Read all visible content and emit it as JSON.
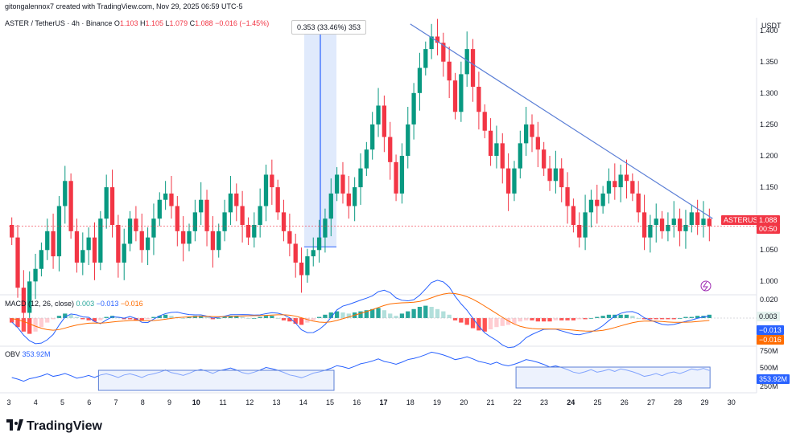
{
  "creator": "gitongalennox7 created with TradingView.com, Nov 29, 2025 06:59 UTC-5",
  "legend": {
    "symbol": "ASTER / TetherUS · 4h · Binance",
    "o_label": "O",
    "o": "1.103",
    "h_label": "H",
    "h": "1.105",
    "l_label": "L",
    "l": "1.079",
    "c_label": "C",
    "c": "1.088",
    "change": "−0.016 (−1.45%)"
  },
  "currency": "USDT",
  "measure_label": "0.353 (33.46%) 353",
  "price_ticks": [
    "1.400",
    "1.350",
    "1.300",
    "1.250",
    "1.200",
    "1.150",
    "1.100",
    "1.050",
    "1.000"
  ],
  "price_badge": {
    "symbol": "ASTERUSDT",
    "price": "1.088",
    "timer": "00:50"
  },
  "macd": {
    "label": "MACD (12, 26, close)",
    "v1": "0.003",
    "v2": "−0.013",
    "v3": "−0.016",
    "tick": "0.020",
    "badges": [
      "0.003",
      "−0.013",
      "−0.016"
    ]
  },
  "obv": {
    "label": "OBV",
    "value": "353.92M",
    "ticks": [
      "750M",
      "500M",
      "250M"
    ],
    "badge": "353.92M"
  },
  "x_ticks": [
    {
      "label": "3",
      "bold": false
    },
    {
      "label": "4",
      "bold": false
    },
    {
      "label": "5",
      "bold": false
    },
    {
      "label": "6",
      "bold": false
    },
    {
      "label": "7",
      "bold": false
    },
    {
      "label": "8",
      "bold": false
    },
    {
      "label": "9",
      "bold": false
    },
    {
      "label": "10",
      "bold": true
    },
    {
      "label": "11",
      "bold": false
    },
    {
      "label": "12",
      "bold": false
    },
    {
      "label": "13",
      "bold": false
    },
    {
      "label": "14",
      "bold": false
    },
    {
      "label": "15",
      "bold": false
    },
    {
      "label": "16",
      "bold": false
    },
    {
      "label": "17",
      "bold": true
    },
    {
      "label": "18",
      "bold": false
    },
    {
      "label": "19",
      "bold": false
    },
    {
      "label": "20",
      "bold": false
    },
    {
      "label": "21",
      "bold": false
    },
    {
      "label": "22",
      "bold": false
    },
    {
      "label": "23",
      "bold": false
    },
    {
      "label": "24",
      "bold": true
    },
    {
      "label": "25",
      "bold": false
    },
    {
      "label": "26",
      "bold": false
    },
    {
      "label": "27",
      "bold": false
    },
    {
      "label": "28",
      "bold": false
    },
    {
      "label": "29",
      "bold": false
    },
    {
      "label": "30",
      "bold": false
    }
  ],
  "brand": "TradingView",
  "colors": {
    "up": "#089981",
    "down": "#f23645",
    "trend": "#5b7fd6",
    "measure_fill": "#dbe6fb",
    "measure_line": "#2962ff",
    "macd_line": "#2962ff",
    "signal_line": "#ff6d00",
    "obv_line": "#2962ff"
  },
  "chart_data": {
    "type": "candlestick",
    "symbol": "ASTER / TetherUS",
    "interval": "4h",
    "exchange": "Binance",
    "y_range": [
      0.98,
      1.42
    ],
    "x_range_days": [
      3,
      30
    ],
    "grid": false,
    "closes": [
      1.07,
      0.99,
      0.95,
      1.0,
      1.02,
      1.05,
      1.08,
      1.04,
      1.12,
      1.16,
      1.08,
      1.03,
      1.05,
      1.07,
      1.03,
      1.1,
      1.15,
      1.09,
      1.03,
      1.06,
      1.1,
      1.08,
      1.05,
      1.07,
      1.1,
      1.13,
      1.14,
      1.12,
      1.08,
      1.06,
      1.08,
      1.11,
      1.13,
      1.08,
      1.05,
      1.08,
      1.11,
      1.14,
      1.12,
      1.09,
      1.07,
      1.09,
      1.12,
      1.17,
      1.15,
      1.11,
      1.08,
      1.06,
      1.03,
      1.01,
      1.04,
      1.05,
      1.07,
      1.1,
      1.14,
      1.17,
      1.14,
      1.12,
      1.15,
      1.18,
      1.21,
      1.25,
      1.28,
      1.23,
      1.19,
      1.14,
      1.2,
      1.25,
      1.3,
      1.34,
      1.37,
      1.39,
      1.38,
      1.35,
      1.32,
      1.27,
      1.33,
      1.37,
      1.31,
      1.27,
      1.24,
      1.2,
      1.22,
      1.18,
      1.14,
      1.18,
      1.22,
      1.25,
      1.23,
      1.21,
      1.18,
      1.16,
      1.18,
      1.15,
      1.12,
      1.09,
      1.07,
      1.11,
      1.13,
      1.12,
      1.14,
      1.16,
      1.15,
      1.17,
      1.16,
      1.14,
      1.11,
      1.07,
      1.09,
      1.1,
      1.08,
      1.09,
      1.1,
      1.08,
      1.09,
      1.11,
      1.09,
      1.1,
      1.088
    ],
    "trendline": [
      [
        18.0,
        1.41
      ],
      [
        29.3,
        1.1
      ]
    ],
    "measure": {
      "from": 1.055,
      "to": 1.408,
      "change": "0.353 (33.46%) 353"
    },
    "macd_hist": [
      -0.004,
      -0.008,
      -0.012,
      -0.014,
      -0.012,
      -0.008,
      -0.004,
      -0.001,
      0.002,
      0.004,
      0.003,
      0.001,
      -0.001,
      -0.002,
      -0.003,
      -0.002,
      0.001,
      0.002,
      0.001,
      -0.001,
      -0.001,
      -0.002,
      -0.002,
      -0.001,
      0.001,
      0.002,
      0.003,
      0.002,
      0.001,
      0.0,
      0.001,
      0.002,
      0.002,
      0.001,
      -0.001,
      0.0,
      0.001,
      0.002,
      0.002,
      0.001,
      0.0,
      0.0,
      0.001,
      0.002,
      0.002,
      0.0,
      -0.002,
      -0.003,
      -0.005,
      -0.006,
      -0.004,
      -0.002,
      0.001,
      0.003,
      0.005,
      0.006,
      0.005,
      0.004,
      0.005,
      0.006,
      0.007,
      0.008,
      0.009,
      0.007,
      0.004,
      0.002,
      0.004,
      0.006,
      0.008,
      0.01,
      0.011,
      0.01,
      0.008,
      0.006,
      0.003,
      -0.002,
      -0.004,
      -0.006,
      -0.009,
      -0.011,
      -0.012,
      -0.01,
      -0.008,
      -0.007,
      -0.006,
      -0.005,
      -0.003,
      -0.002,
      -0.002,
      -0.003,
      -0.003,
      -0.003,
      -0.002,
      -0.002,
      -0.002,
      -0.002,
      -0.001,
      -0.001,
      0.0,
      0.001,
      0.002,
      0.003,
      0.003,
      0.003,
      0.003,
      0.002,
      0.0,
      -0.001,
      -0.001,
      -0.001,
      -0.001,
      -0.001,
      -0.001,
      0.0,
      0.001,
      0.001,
      0.002,
      0.002,
      0.003
    ]
  }
}
